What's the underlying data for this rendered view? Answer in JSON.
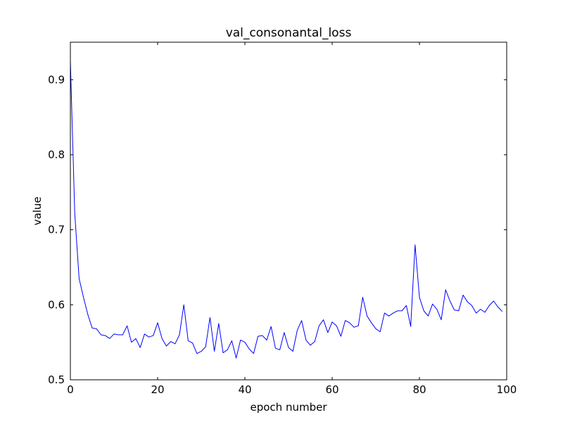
{
  "chart_data": {
    "type": "line",
    "title": "val_consonantal_loss",
    "xlabel": "epoch number",
    "ylabel": "value",
    "xlim": [
      0,
      100
    ],
    "ylim": [
      0.5,
      0.95
    ],
    "x_ticks": [
      0,
      20,
      40,
      60,
      80,
      100
    ],
    "y_ticks": [
      0.5,
      0.6,
      0.7,
      0.8,
      0.9
    ],
    "x_tick_labels": [
      "0",
      "20",
      "40",
      "60",
      "80",
      "100"
    ],
    "y_tick_labels": [
      "0.5",
      "0.6",
      "0.7",
      "0.8",
      "0.9"
    ],
    "grid": false,
    "series": [
      {
        "color": "#0000ff",
        "x": [
          0,
          1,
          2,
          3,
          4,
          5,
          6,
          7,
          8,
          9,
          10,
          11,
          12,
          13,
          14,
          15,
          16,
          17,
          18,
          19,
          20,
          21,
          22,
          23,
          24,
          25,
          26,
          27,
          28,
          29,
          30,
          31,
          32,
          33,
          34,
          35,
          36,
          37,
          38,
          39,
          40,
          41,
          42,
          43,
          44,
          45,
          46,
          47,
          48,
          49,
          50,
          51,
          52,
          53,
          54,
          55,
          56,
          57,
          58,
          59,
          60,
          61,
          62,
          63,
          64,
          65,
          66,
          67,
          68,
          69,
          70,
          71,
          72,
          73,
          74,
          75,
          76,
          77,
          78,
          79,
          80,
          81,
          82,
          83,
          84,
          85,
          86,
          87,
          88,
          89,
          90,
          91,
          92,
          93,
          94,
          95,
          96,
          97,
          98,
          99
        ],
        "values": [
          0.925,
          0.722,
          0.635,
          0.61,
          0.587,
          0.569,
          0.568,
          0.56,
          0.559,
          0.555,
          0.561,
          0.56,
          0.56,
          0.572,
          0.55,
          0.555,
          0.543,
          0.561,
          0.557,
          0.559,
          0.576,
          0.555,
          0.545,
          0.551,
          0.548,
          0.56,
          0.6,
          0.552,
          0.549,
          0.535,
          0.538,
          0.544,
          0.583,
          0.538,
          0.575,
          0.536,
          0.54,
          0.552,
          0.529,
          0.553,
          0.55,
          0.541,
          0.535,
          0.558,
          0.559,
          0.553,
          0.571,
          0.542,
          0.54,
          0.563,
          0.543,
          0.538,
          0.566,
          0.579,
          0.553,
          0.546,
          0.551,
          0.572,
          0.58,
          0.563,
          0.577,
          0.572,
          0.558,
          0.579,
          0.576,
          0.57,
          0.572,
          0.61,
          0.585,
          0.576,
          0.568,
          0.564,
          0.589,
          0.585,
          0.589,
          0.592,
          0.592,
          0.599,
          0.571,
          0.68,
          0.61,
          0.592,
          0.585,
          0.601,
          0.594,
          0.58,
          0.62,
          0.605,
          0.593,
          0.592,
          0.613,
          0.604,
          0.599,
          0.589,
          0.594,
          0.59,
          0.599,
          0.605,
          0.597,
          0.591
        ]
      }
    ]
  }
}
